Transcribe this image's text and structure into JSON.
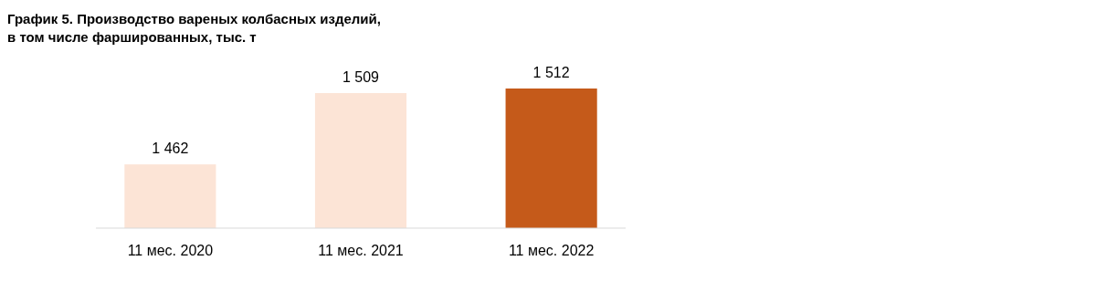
{
  "chart_data": {
    "type": "bar",
    "title": "График 5. Производство вареных колбасных изделий, в том числе фаршированных, тыс. т",
    "categories": [
      "11 мес. 2020",
      "11 мес. 2021",
      "11 мес. 2022"
    ],
    "values": [
      1462,
      1509,
      1512
    ],
    "colors": [
      "#fce4d6",
      "#fce4d6",
      "#c55a1a"
    ],
    "ylim": [
      1420,
      1512
    ],
    "value_labels": [
      "1 462",
      "1 509",
      "1 512"
    ],
    "tick_labels": "x"
  }
}
